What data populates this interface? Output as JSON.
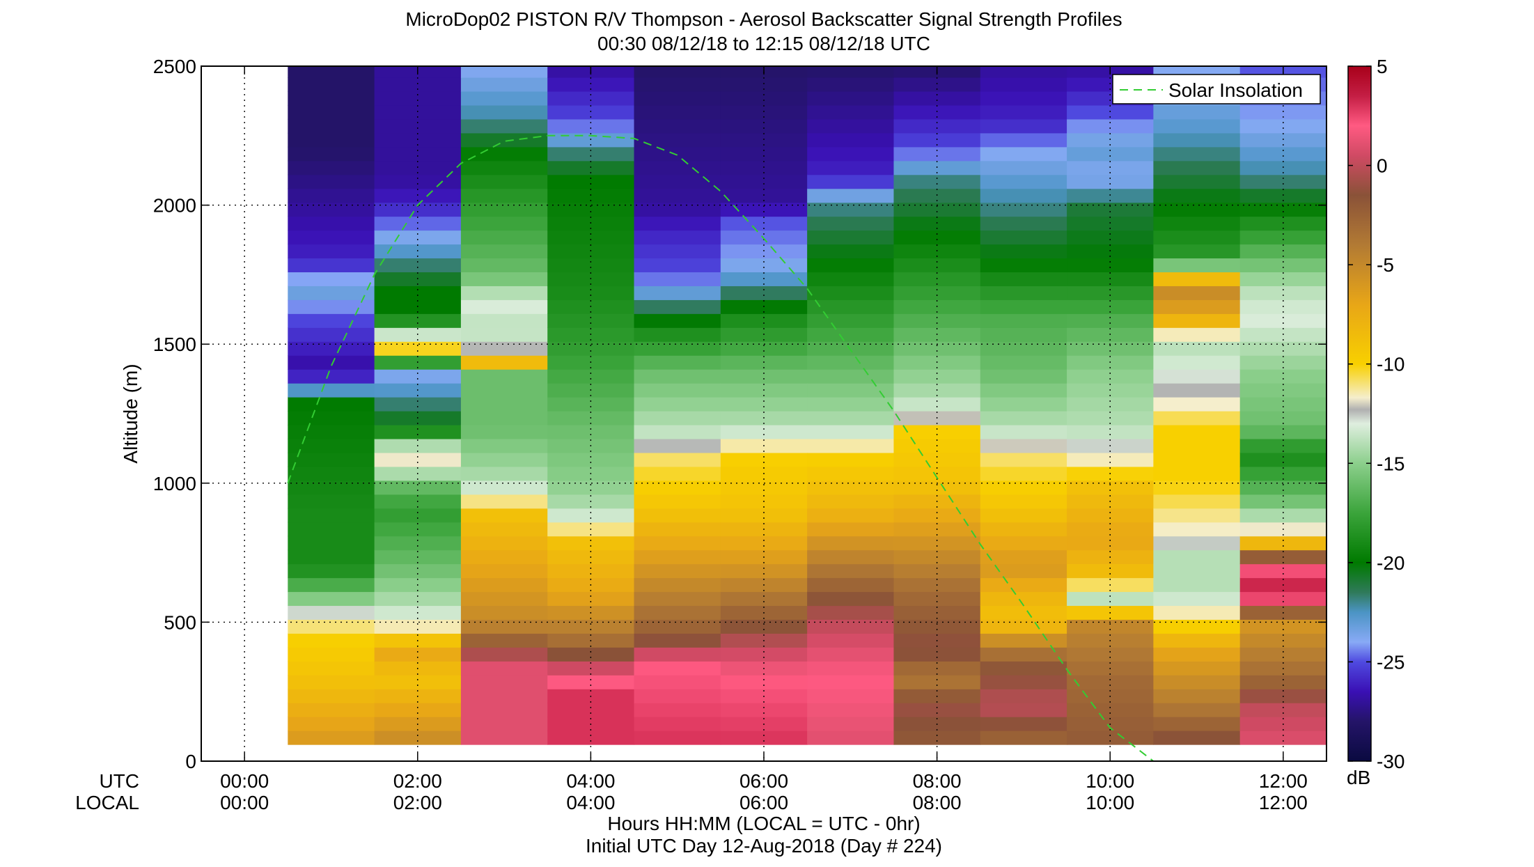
{
  "chart_data": {
    "type": "heatmap",
    "title": "MicroDop02 PISTON R/V Thompson - Aerosol Backscatter Signal Strength Profiles",
    "subtitle": "00:30 08/12/18 to 12:15 08/12/18  UTC",
    "ylabel": "Altitude (m)",
    "xlabel": "Hours HH:MM  (LOCAL = UTC - 0hr)",
    "footer": "Initial UTC Day 12-Aug-2018 (Day # 224)",
    "utc_row_label": "UTC",
    "local_row_label": "LOCAL",
    "x_range_hours": [
      -0.5,
      12.5
    ],
    "ylim": [
      0,
      2500
    ],
    "y_ticks": [
      "0",
      "500",
      "1000",
      "1500",
      "2000",
      "2500"
    ],
    "x_ticks_utc": [
      "00:00",
      "02:00",
      "04:00",
      "06:00",
      "08:00",
      "10:00",
      "12:00"
    ],
    "x_ticks_local": [
      "00:00",
      "02:00",
      "04:00",
      "06:00",
      "08:00",
      "10:00",
      "12:00"
    ],
    "grid": true,
    "legend": {
      "label": "Solar Insolation",
      "placement": "top-right",
      "color": "#33cc33",
      "style": "dashed"
    },
    "colorbar": {
      "min": -30,
      "max": 5,
      "ticks": [
        "5",
        "0",
        "-5",
        "-10",
        "-15",
        "-20",
        "-25",
        "-30"
      ],
      "unit": "dB"
    },
    "column_starts_hours": [
      0.5,
      1.5,
      2.5,
      3.5,
      4.5,
      5.5,
      6.5,
      7.5,
      8.5,
      9.5,
      10.5,
      11.5
    ],
    "column_width_hours": 1.0,
    "altitude_bin_m": 50,
    "altitude_top_m": 2500,
    "altitude_bottom_m": 60,
    "profiles": [
      {
        "time": "01:00",
        "points": [
          [
            60,
            -6
          ],
          [
            300,
            -9
          ],
          [
            450,
            -10
          ],
          [
            520,
            -12
          ],
          [
            560,
            -14
          ],
          [
            600,
            -16
          ],
          [
            700,
            -19
          ],
          [
            900,
            -19
          ],
          [
            1100,
            -19.5
          ],
          [
            1300,
            -20
          ],
          [
            1340,
            -23
          ],
          [
            1400,
            -27
          ],
          [
            1500,
            -26
          ],
          [
            1600,
            -25
          ],
          [
            1700,
            -23
          ],
          [
            1800,
            -26
          ],
          [
            2000,
            -27
          ],
          [
            2200,
            -28
          ],
          [
            2500,
            -28
          ]
        ]
      },
      {
        "time": "02:00",
        "points": [
          [
            60,
            -5
          ],
          [
            300,
            -9
          ],
          [
            400,
            -7
          ],
          [
            450,
            -10
          ],
          [
            520,
            -13
          ],
          [
            560,
            -14
          ],
          [
            700,
            -16
          ],
          [
            900,
            -18
          ],
          [
            1000,
            -16
          ],
          [
            1100,
            -11
          ],
          [
            1200,
            -20
          ],
          [
            1300,
            -22
          ],
          [
            1400,
            -24
          ],
          [
            1480,
            -10
          ],
          [
            1520,
            -12
          ],
          [
            1600,
            -20
          ],
          [
            1700,
            -20
          ],
          [
            1800,
            -22
          ],
          [
            1900,
            -24
          ],
          [
            2000,
            -26
          ],
          [
            2100,
            -27
          ],
          [
            2500,
            -27
          ]
        ]
      },
      {
        "time": "03:00",
        "points": [
          [
            60,
            1
          ],
          [
            200,
            1
          ],
          [
            350,
            1
          ],
          [
            420,
            -2
          ],
          [
            500,
            -5
          ],
          [
            700,
            -7
          ],
          [
            900,
            -9
          ],
          [
            950,
            -12
          ],
          [
            1000,
            -14
          ],
          [
            1200,
            -16
          ],
          [
            1400,
            -16
          ],
          [
            1430,
            -8
          ],
          [
            1470,
            -12
          ],
          [
            1550,
            -14
          ],
          [
            1650,
            -13
          ],
          [
            1750,
            -16
          ],
          [
            2000,
            -18
          ],
          [
            2200,
            -20
          ],
          [
            2300,
            -22
          ],
          [
            2500,
            -24
          ]
        ]
      },
      {
        "time": "04:00",
        "points": [
          [
            60,
            3
          ],
          [
            250,
            3
          ],
          [
            350,
            0
          ],
          [
            420,
            -3
          ],
          [
            600,
            -7
          ],
          [
            800,
            -9
          ],
          [
            850,
            -12
          ],
          [
            900,
            -14
          ],
          [
            1000,
            -15
          ],
          [
            1200,
            -16
          ],
          [
            1500,
            -18
          ],
          [
            1700,
            -19
          ],
          [
            2100,
            -20
          ],
          [
            2200,
            -22
          ],
          [
            2300,
            -25
          ],
          [
            2500,
            -27
          ]
        ]
      },
      {
        "time": "05:00",
        "points": [
          [
            60,
            3
          ],
          [
            350,
            2
          ],
          [
            420,
            -1
          ],
          [
            500,
            -3
          ],
          [
            700,
            -6
          ],
          [
            900,
            -9
          ],
          [
            1100,
            -11
          ],
          [
            1150,
            -13
          ],
          [
            1200,
            -14
          ],
          [
            1400,
            -16
          ],
          [
            1550,
            -19
          ],
          [
            1650,
            -22
          ],
          [
            1750,
            -25
          ],
          [
            1900,
            -26
          ],
          [
            2000,
            -27
          ],
          [
            2500,
            -28
          ]
        ]
      },
      {
        "time": "06:00",
        "points": [
          [
            60,
            3
          ],
          [
            300,
            2
          ],
          [
            420,
            0
          ],
          [
            500,
            -2
          ],
          [
            700,
            -6
          ],
          [
            900,
            -9
          ],
          [
            1100,
            -10
          ],
          [
            1150,
            -12
          ],
          [
            1200,
            -14
          ],
          [
            1400,
            -16
          ],
          [
            1600,
            -19
          ],
          [
            1700,
            -22
          ],
          [
            1800,
            -24
          ],
          [
            1950,
            -25
          ],
          [
            2000,
            -27
          ],
          [
            2500,
            -28
          ]
        ]
      },
      {
        "time": "07:00",
        "points": [
          [
            60,
            1
          ],
          [
            300,
            2
          ],
          [
            400,
            1
          ],
          [
            500,
            0
          ],
          [
            650,
            -3
          ],
          [
            900,
            -8
          ],
          [
            1100,
            -10
          ],
          [
            1150,
            -12
          ],
          [
            1200,
            -14
          ],
          [
            1400,
            -16
          ],
          [
            1600,
            -18
          ],
          [
            1800,
            -20
          ],
          [
            2000,
            -22
          ],
          [
            2100,
            -26
          ],
          [
            2500,
            -28
          ]
        ]
      },
      {
        "time": "08:00",
        "points": [
          [
            60,
            -2
          ],
          [
            200,
            -1
          ],
          [
            300,
            -4
          ],
          [
            400,
            -1
          ],
          [
            600,
            -3
          ],
          [
            800,
            -6
          ],
          [
            1000,
            -9
          ],
          [
            1200,
            -10
          ],
          [
            1230,
            -12
          ],
          [
            1300,
            -14
          ],
          [
            1500,
            -16
          ],
          [
            1700,
            -18
          ],
          [
            1900,
            -20
          ],
          [
            2100,
            -22
          ],
          [
            2200,
            -25
          ],
          [
            2300,
            -26
          ],
          [
            2500,
            -28
          ]
        ]
      },
      {
        "time": "09:00",
        "points": [
          [
            60,
            -3
          ],
          [
            200,
            0
          ],
          [
            350,
            -2
          ],
          [
            450,
            -6
          ],
          [
            500,
            -9
          ],
          [
            600,
            -8
          ],
          [
            700,
            -6
          ],
          [
            900,
            -9
          ],
          [
            1100,
            -11
          ],
          [
            1200,
            -14
          ],
          [
            1400,
            -16
          ],
          [
            1600,
            -17
          ],
          [
            1800,
            -20
          ],
          [
            2000,
            -22
          ],
          [
            2100,
            -23
          ],
          [
            2200,
            -24
          ],
          [
            2300,
            -26
          ],
          [
            2500,
            -27
          ]
        ]
      },
      {
        "time": "10:00",
        "points": [
          [
            60,
            -2
          ],
          [
            300,
            -3
          ],
          [
            500,
            -5
          ],
          [
            550,
            -11
          ],
          [
            600,
            -15
          ],
          [
            650,
            -9
          ],
          [
            800,
            -7
          ],
          [
            1000,
            -9
          ],
          [
            1100,
            -12
          ],
          [
            1200,
            -14
          ],
          [
            1400,
            -15
          ],
          [
            1600,
            -17
          ],
          [
            1800,
            -20
          ],
          [
            2000,
            -21
          ],
          [
            2100,
            -24
          ],
          [
            2200,
            -23
          ],
          [
            2400,
            -26
          ],
          [
            2500,
            -27
          ]
        ]
      },
      {
        "time": "11:00",
        "points": [
          [
            60,
            -1
          ],
          [
            200,
            -4
          ],
          [
            400,
            -7
          ],
          [
            550,
            -12
          ],
          [
            600,
            -14
          ],
          [
            750,
            -14
          ],
          [
            800,
            -12
          ],
          [
            1000,
            -10
          ],
          [
            1200,
            -10
          ],
          [
            1300,
            -12
          ],
          [
            1500,
            -14
          ],
          [
            1600,
            -7
          ],
          [
            1700,
            -5
          ],
          [
            1750,
            -10
          ],
          [
            1800,
            -18
          ],
          [
            2000,
            -20
          ],
          [
            2200,
            -22
          ],
          [
            2300,
            -23
          ],
          [
            2500,
            -24
          ]
        ]
      },
      {
        "time": "12:00",
        "points": [
          [
            60,
            1
          ],
          [
            200,
            0
          ],
          [
            300,
            -3
          ],
          [
            500,
            -6
          ],
          [
            600,
            4
          ],
          [
            700,
            2
          ],
          [
            800,
            -10
          ],
          [
            900,
            -15
          ],
          [
            1100,
            -19
          ],
          [
            1200,
            -16
          ],
          [
            1400,
            -15
          ],
          [
            1600,
            -13
          ],
          [
            1700,
            -14
          ],
          [
            1800,
            -16
          ],
          [
            2000,
            -20
          ],
          [
            2100,
            -22
          ],
          [
            2300,
            -24
          ],
          [
            2500,
            -25
          ]
        ]
      }
    ],
    "solar_insolation": {
      "x": [
        0.5,
        1.0,
        1.5,
        2.0,
        2.5,
        3.0,
        3.5,
        4.0,
        4.5,
        5.0,
        5.5,
        6.0,
        6.5,
        7.0,
        7.5,
        8.0,
        8.5,
        9.0,
        9.5,
        10.0,
        10.5
      ],
      "y": [
        1000,
        1420,
        1750,
        2000,
        2150,
        2230,
        2250,
        2250,
        2240,
        2180,
        2050,
        1880,
        1700,
        1480,
        1260,
        1020,
        780,
        560,
        330,
        120,
        0
      ]
    }
  },
  "colors": {
    "colormap_stops": [
      [
        -30,
        "#0a0a40"
      ],
      [
        -28,
        "#241468"
      ],
      [
        -26.5,
        "#3a10b4"
      ],
      [
        -25,
        "#4f4ae0"
      ],
      [
        -24,
        "#88aaf6"
      ],
      [
        -22.5,
        "#4b94c4"
      ],
      [
        -21.5,
        "#2f7a5a"
      ],
      [
        -20,
        "#007a00"
      ],
      [
        -17.5,
        "#3ba43b"
      ],
      [
        -15,
        "#8ccf8c"
      ],
      [
        -13,
        "#dfeedf"
      ],
      [
        -12.3,
        "#b0b0b0"
      ],
      [
        -11.7,
        "#f5eecc"
      ],
      [
        -10,
        "#f8d000"
      ],
      [
        -7,
        "#e8a617"
      ],
      [
        -4,
        "#b27a34"
      ],
      [
        -1.5,
        "#8a5238"
      ],
      [
        0.5,
        "#d04a64"
      ],
      [
        2,
        "#ff5a82"
      ],
      [
        3.5,
        "#c41e44"
      ],
      [
        5,
        "#a8001a"
      ]
    ]
  }
}
